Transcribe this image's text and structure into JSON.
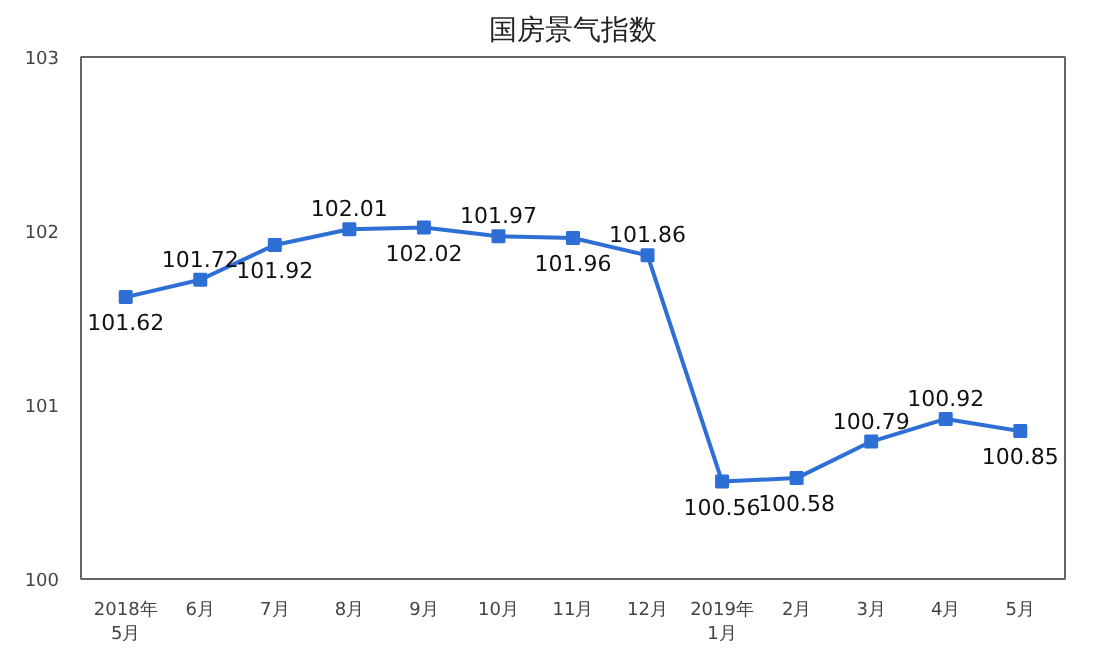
{
  "chart_data": {
    "type": "line",
    "title": "国房景气指数",
    "categories": [
      "2018年\n5月",
      "6月",
      "7月",
      "8月",
      "9月",
      "10月",
      "11月",
      "12月",
      "2019年\n1月",
      "2月",
      "3月",
      "4月",
      "5月"
    ],
    "values": [
      101.62,
      101.72,
      101.92,
      102.01,
      102.02,
      101.97,
      101.96,
      101.86,
      100.56,
      100.58,
      100.79,
      100.92,
      100.85
    ],
    "color": "#2e6fd6",
    "ylim": [
      100,
      103
    ],
    "yticks": [
      100,
      101,
      102,
      103
    ],
    "grid": false,
    "marker": "square",
    "line_style": "solid",
    "data_labels": true
  }
}
